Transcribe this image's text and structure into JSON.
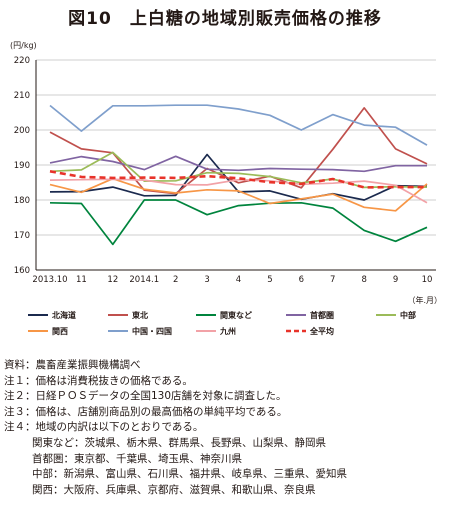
{
  "title": "図10　上白糖の地域別販売価格の推移",
  "chart_data": {
    "type": "line",
    "y_unit": "(円/kg)",
    "x_unit": "（年.月）",
    "ylim": [
      160,
      220
    ],
    "yticks": [
      160,
      170,
      180,
      190,
      200,
      210,
      220
    ],
    "grid": true,
    "legend_position": "bottom",
    "categories": [
      "2013.10",
      "11",
      "12",
      "2014.1",
      "2",
      "3",
      "4",
      "5",
      "6",
      "7",
      "8",
      "9",
      "10"
    ],
    "series": [
      {
        "name": "北海道",
        "color": "#1b2a4e",
        "dashed": false,
        "values": [
          182.3,
          182.4,
          183.7,
          181.2,
          181.3,
          193.0,
          182.3,
          182.6,
          180.2,
          181.8,
          180.0,
          184.1,
          183.9
        ]
      },
      {
        "name": "東北",
        "color": "#c0504d",
        "dashed": false,
        "values": [
          199.4,
          194.6,
          193.5,
          182.8,
          181.8,
          189.0,
          184.9,
          186.8,
          183.5,
          194.5,
          206.3,
          194.6,
          190.3
        ]
      },
      {
        "name": "関東など",
        "color": "#00843d",
        "dashed": false,
        "values": [
          179.2,
          179.0,
          167.3,
          180.0,
          180.0,
          175.8,
          178.4,
          179.1,
          179.2,
          177.7,
          171.3,
          168.2,
          172.2
        ]
      },
      {
        "name": "首都圏",
        "color": "#8064a2",
        "dashed": false,
        "values": [
          190.6,
          192.4,
          191.0,
          188.7,
          192.5,
          188.8,
          188.5,
          189.0,
          188.8,
          188.7,
          188.2,
          189.8,
          189.8
        ]
      },
      {
        "name": "中部",
        "color": "#9bbb59",
        "dashed": false,
        "values": [
          188.2,
          188.6,
          193.6,
          185.4,
          185.5,
          187.8,
          187.6,
          186.7,
          184.9,
          186.0,
          183.6,
          183.8,
          183.7
        ]
      },
      {
        "name": "関西",
        "color": "#f79646",
        "dashed": false,
        "values": [
          184.4,
          182.2,
          186.1,
          183.1,
          182.0,
          182.9,
          182.6,
          179.0,
          180.3,
          181.7,
          177.9,
          176.9,
          184.6
        ]
      },
      {
        "name": "中国・四国",
        "color": "#7f9fcc",
        "dashed": false,
        "values": [
          207.0,
          199.7,
          206.9,
          206.9,
          207.1,
          207.1,
          206.0,
          204.2,
          200.0,
          204.4,
          201.4,
          200.8,
          195.7
        ]
      },
      {
        "name": "九州",
        "color": "#f2a2a7",
        "dashed": false,
        "values": [
          185.7,
          185.8,
          185.9,
          185.7,
          184.4,
          184.3,
          185.8,
          185.5,
          184.5,
          184.8,
          185.4,
          184.2,
          179.2
        ]
      },
      {
        "name": "全平均",
        "color": "#e8332a",
        "dashed": true,
        "values": [
          188.2,
          186.6,
          186.3,
          186.4,
          186.3,
          186.8,
          186.2,
          185.1,
          184.6,
          186.0,
          183.6,
          183.7,
          183.7
        ]
      }
    ]
  },
  "notes": [
    {
      "label": "資料：",
      "text": "農畜産業振興機構調べ"
    },
    {
      "label": "注１：",
      "text": "価格は消費税抜きの価格である。"
    },
    {
      "label": "注２：",
      "text": "日経ＰＯＳデータの全国130店舗を対象に調査した。"
    },
    {
      "label": "注３：",
      "text": "価格は、店舗別商品別の最高価格の単純平均である。"
    },
    {
      "label": "注４：",
      "text": "地域の内訳は以下のとおりである。"
    }
  ],
  "regions": [
    "関東など：茨城県、栃木県、群馬県、長野県、山梨県、静岡県",
    "首都圏：東京都、千葉県、埼玉県、神奈川県",
    "中部：新潟県、富山県、石川県、福井県、岐阜県、三重県、愛知県",
    "関西：大阪府、兵庫県、京都府、滋賀県、和歌山県、奈良県"
  ]
}
